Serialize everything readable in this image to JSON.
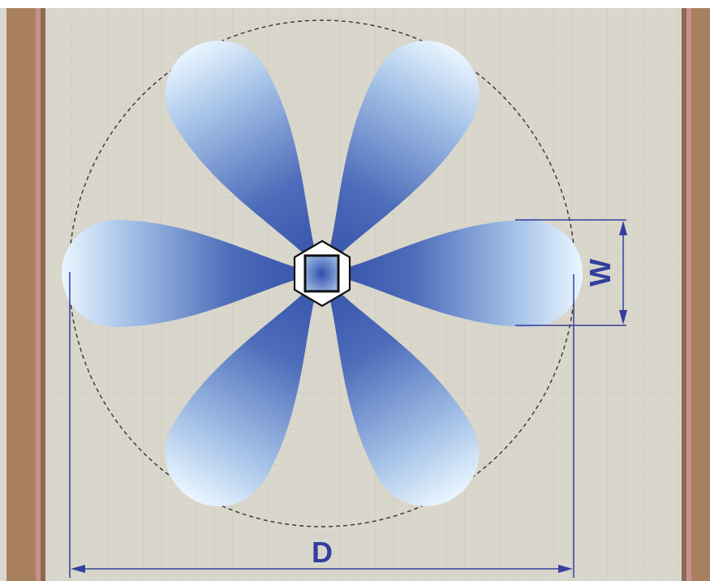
{
  "colors": {
    "background": "#d9d6cb",
    "grid": "#c9c6bc",
    "wall": "#a9805e",
    "wall_edge": "#c98f8f",
    "petal_dark": "#3350a8",
    "petal_light": "#eaf6ff",
    "dimension": "#333f9e",
    "circle": "#333333"
  },
  "labels": {
    "width": "W",
    "diameter": "D"
  },
  "icons": {
    "hub": "hexagon-hub-icon",
    "petal": "teardrop-petal-icon"
  },
  "petal_count": 6
}
